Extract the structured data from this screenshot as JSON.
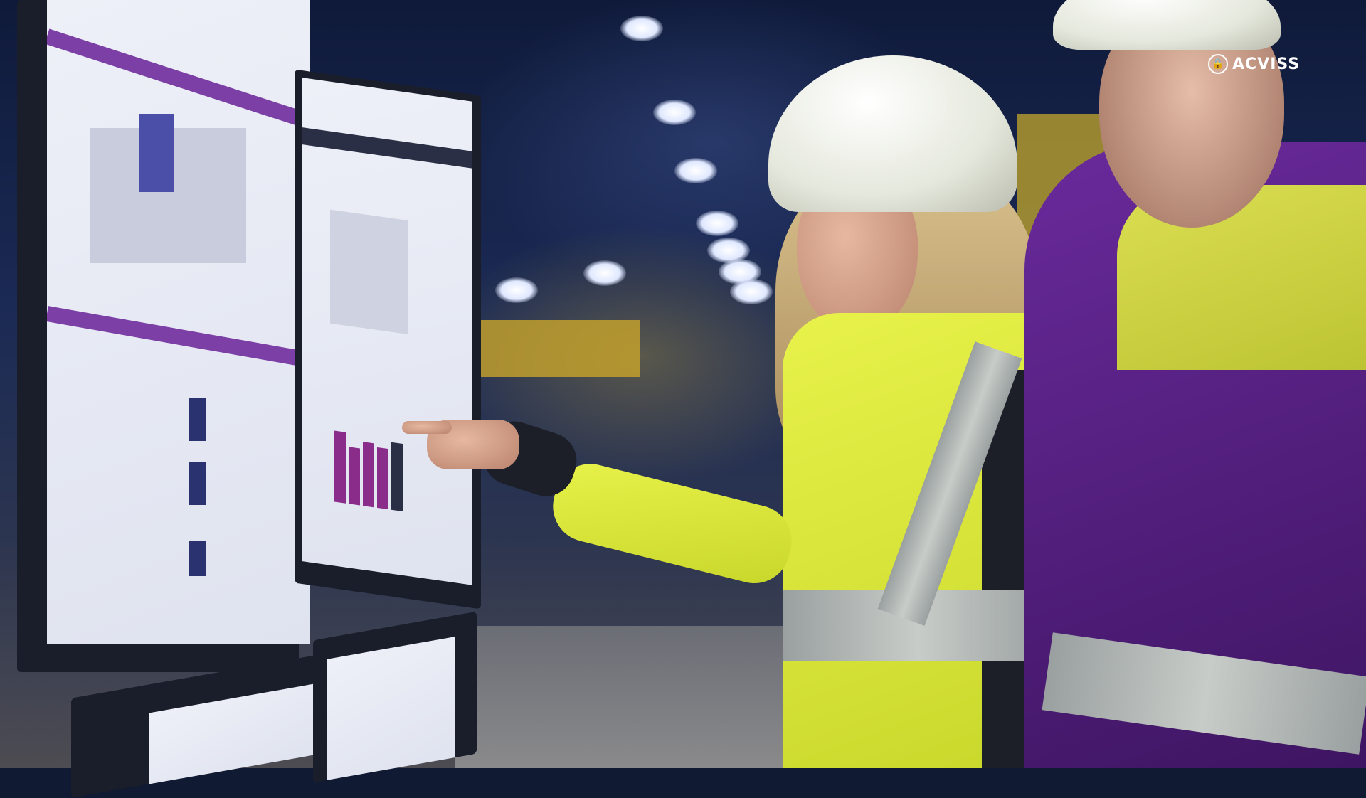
{
  "scene": {
    "description_type": "photo",
    "colors": {
      "vest": "#d8e43a",
      "brand_purple": "#7b3fa6",
      "background": "#101a33"
    }
  },
  "logo": {
    "text": "ACVISS",
    "icon": "lock-icon"
  }
}
